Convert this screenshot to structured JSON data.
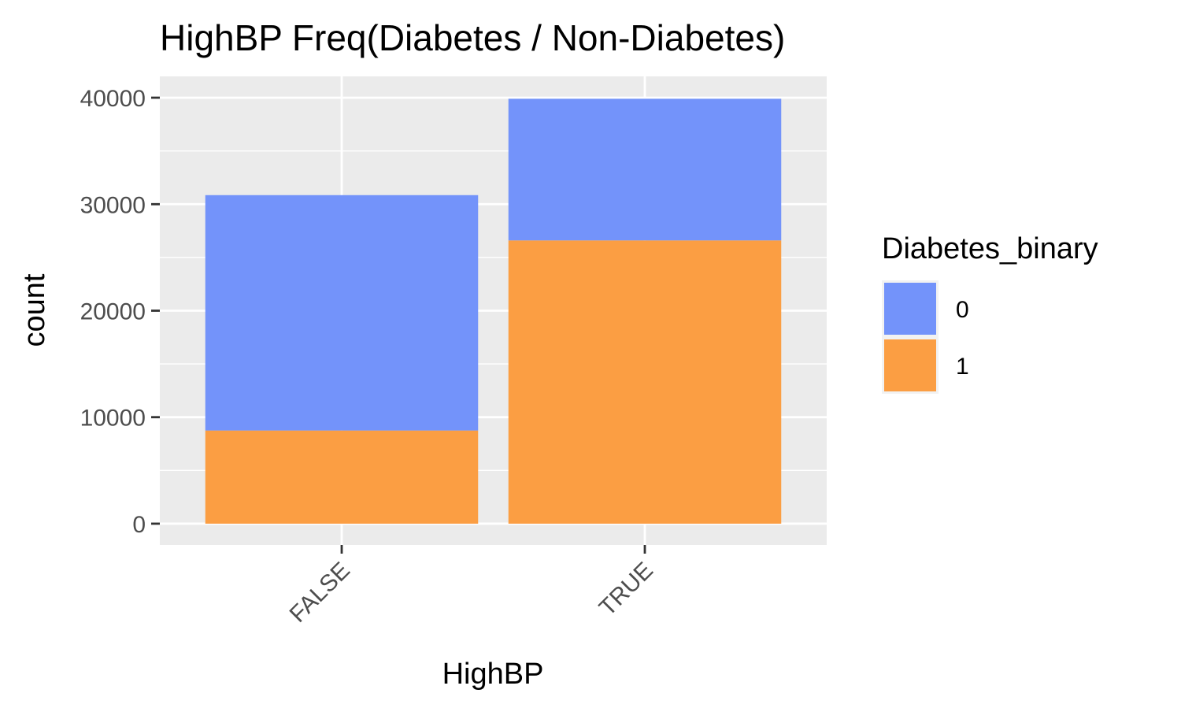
{
  "chart_data": {
    "type": "bar",
    "stacked": true,
    "title": "HighBP Freq(Diabetes / Non-Diabetes)",
    "xlabel": "HighBP",
    "ylabel": "count",
    "categories": [
      "FALSE",
      "TRUE"
    ],
    "series": [
      {
        "name": "0",
        "values": [
          22100,
          13300
        ],
        "color": "#6d8ffa"
      },
      {
        "name": "1",
        "values": [
          8750,
          26600
        ],
        "color": "#fb9a3b"
      }
    ],
    "yticks": [
      0,
      10000,
      20000,
      30000,
      40000
    ],
    "ytick_labels": [
      "0",
      "10000",
      "20000",
      "30000",
      "40000"
    ],
    "ylim": [
      -2000,
      42000
    ],
    "grid": true,
    "panel_background": "#ebebeb",
    "legend": {
      "title": "Diabetes_binary",
      "position": "right",
      "entries": [
        "0",
        "1"
      ]
    }
  }
}
